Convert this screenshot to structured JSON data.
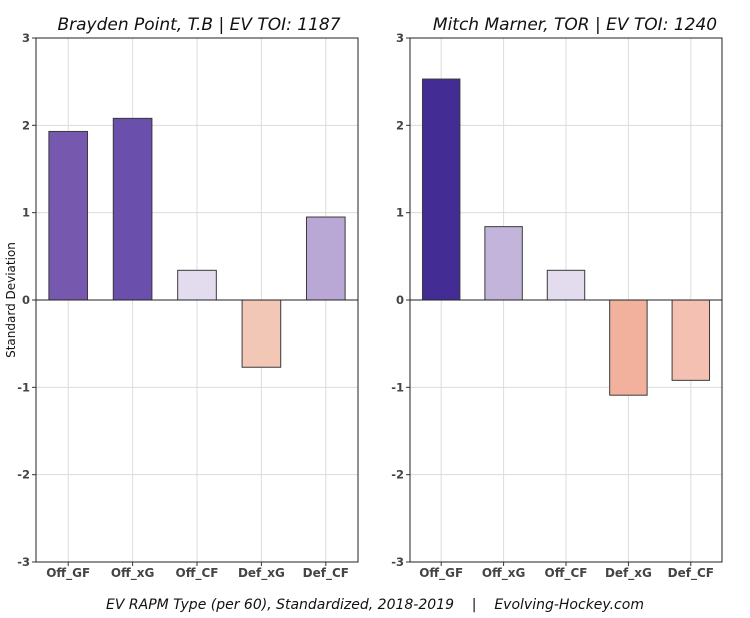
{
  "chart_data": [
    {
      "type": "bar",
      "title": "Brayden Point, T.B  |  EV TOI: 1187",
      "categories": [
        "Off_GF",
        "Off_xG",
        "Off_CF",
        "Def_xG",
        "Def_CF"
      ],
      "values": [
        1.93,
        2.08,
        0.34,
        -0.77,
        0.95
      ],
      "colors": [
        "#7659ae",
        "#6a4fac",
        "#e2dcee",
        "#f3c7b6",
        "#b9a8d6"
      ],
      "ylabel": "Standard Deviation",
      "ylim": [
        -3,
        3
      ],
      "yticks": [
        3,
        2,
        1,
        0,
        -1,
        -2,
        -3
      ],
      "grid": true
    },
    {
      "type": "bar",
      "title": "Mitch Marner, TOR  |  EV TOI: 1240",
      "categories": [
        "Off_GF",
        "Off_xG",
        "Off_CF",
        "Def_xG",
        "Def_CF"
      ],
      "values": [
        2.53,
        0.84,
        0.34,
        -1.09,
        -0.92
      ],
      "colors": [
        "#432d95",
        "#c2b4db",
        "#e2dcee",
        "#f1b19d",
        "#f3c0b2"
      ],
      "ylim": [
        -3,
        3
      ],
      "yticks": [
        3,
        2,
        1,
        0,
        -1,
        -2,
        -3
      ],
      "grid": true
    }
  ],
  "footer": {
    "left": "EV RAPM Type (per 60), Standardized, 2018-2019",
    "separator": "|",
    "right": "Evolving-Hockey.com"
  }
}
